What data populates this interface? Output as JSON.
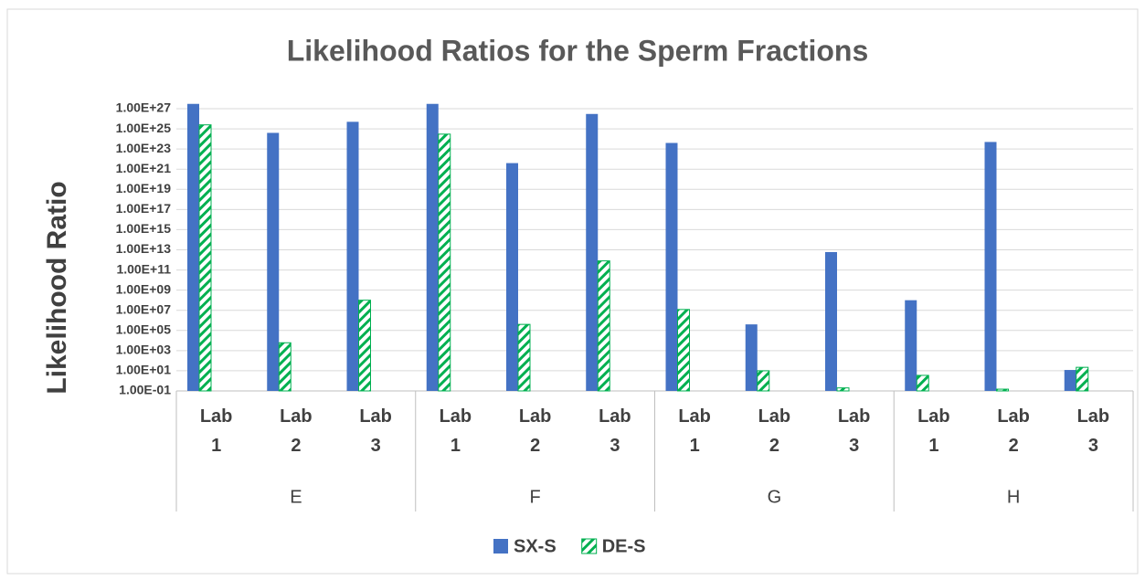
{
  "chart_data": {
    "type": "bar",
    "title": "Likelihood Ratios for the Sperm Fractions",
    "y_label": "Likelihood Ratio",
    "categories": [
      "Lab 1",
      "Lab 2",
      "Lab 3",
      "Lab 1",
      "Lab 2",
      "Lab 3",
      "Lab 1",
      "Lab 2",
      "Lab 3",
      "Lab 1",
      "Lab 2",
      "Lab 3"
    ],
    "groups": [
      "E",
      "F",
      "G",
      "H"
    ],
    "series": [
      {
        "name": "SX-S",
        "color": "#4472c4",
        "values": [
          3e+27,
          4e+24,
          5e+25,
          3e+27,
          4e+21,
          3e+26,
          4e+23,
          400000.0,
          6000000000000.0,
          100000000.0,
          5e+23,
          12
        ]
      },
      {
        "name": "DE-S",
        "color": "#00b050",
        "hatch": true,
        "values": [
          2.5e+25,
          6000.0,
          100000000.0,
          3e+24,
          400000.0,
          800000000000.0,
          12000000.0,
          10,
          0.2,
          3.5,
          0.15,
          22
        ]
      }
    ],
    "log_scale": true,
    "ylim": [
      0.1,
      1e+28
    ],
    "yticks": [
      {
        "value": 0.1,
        "label": "1.00E-01"
      },
      {
        "value": 10,
        "label": "1.00E+01"
      },
      {
        "value": 1000,
        "label": "1.00E+03"
      },
      {
        "value": 100000.0,
        "label": "1.00E+05"
      },
      {
        "value": 10000000.0,
        "label": "1.00E+07"
      },
      {
        "value": 1000000000.0,
        "label": "1.00E+09"
      },
      {
        "value": 100000000000.0,
        "label": "1.00E+11"
      },
      {
        "value": 10000000000000.0,
        "label": "1.00E+13"
      },
      {
        "value": 1000000000000000.0,
        "label": "1.00E+15"
      },
      {
        "value": 1e+17,
        "label": "1.00E+17"
      },
      {
        "value": 1e+19,
        "label": "1.00E+19"
      },
      {
        "value": 1e+21,
        "label": "1.00E+21"
      },
      {
        "value": 1e+23,
        "label": "1.00E+23"
      },
      {
        "value": 1e+25,
        "label": "1.00E+25"
      },
      {
        "value": 1e+27,
        "label": "1.00E+27"
      }
    ],
    "grid": true,
    "legend": "bottom"
  }
}
